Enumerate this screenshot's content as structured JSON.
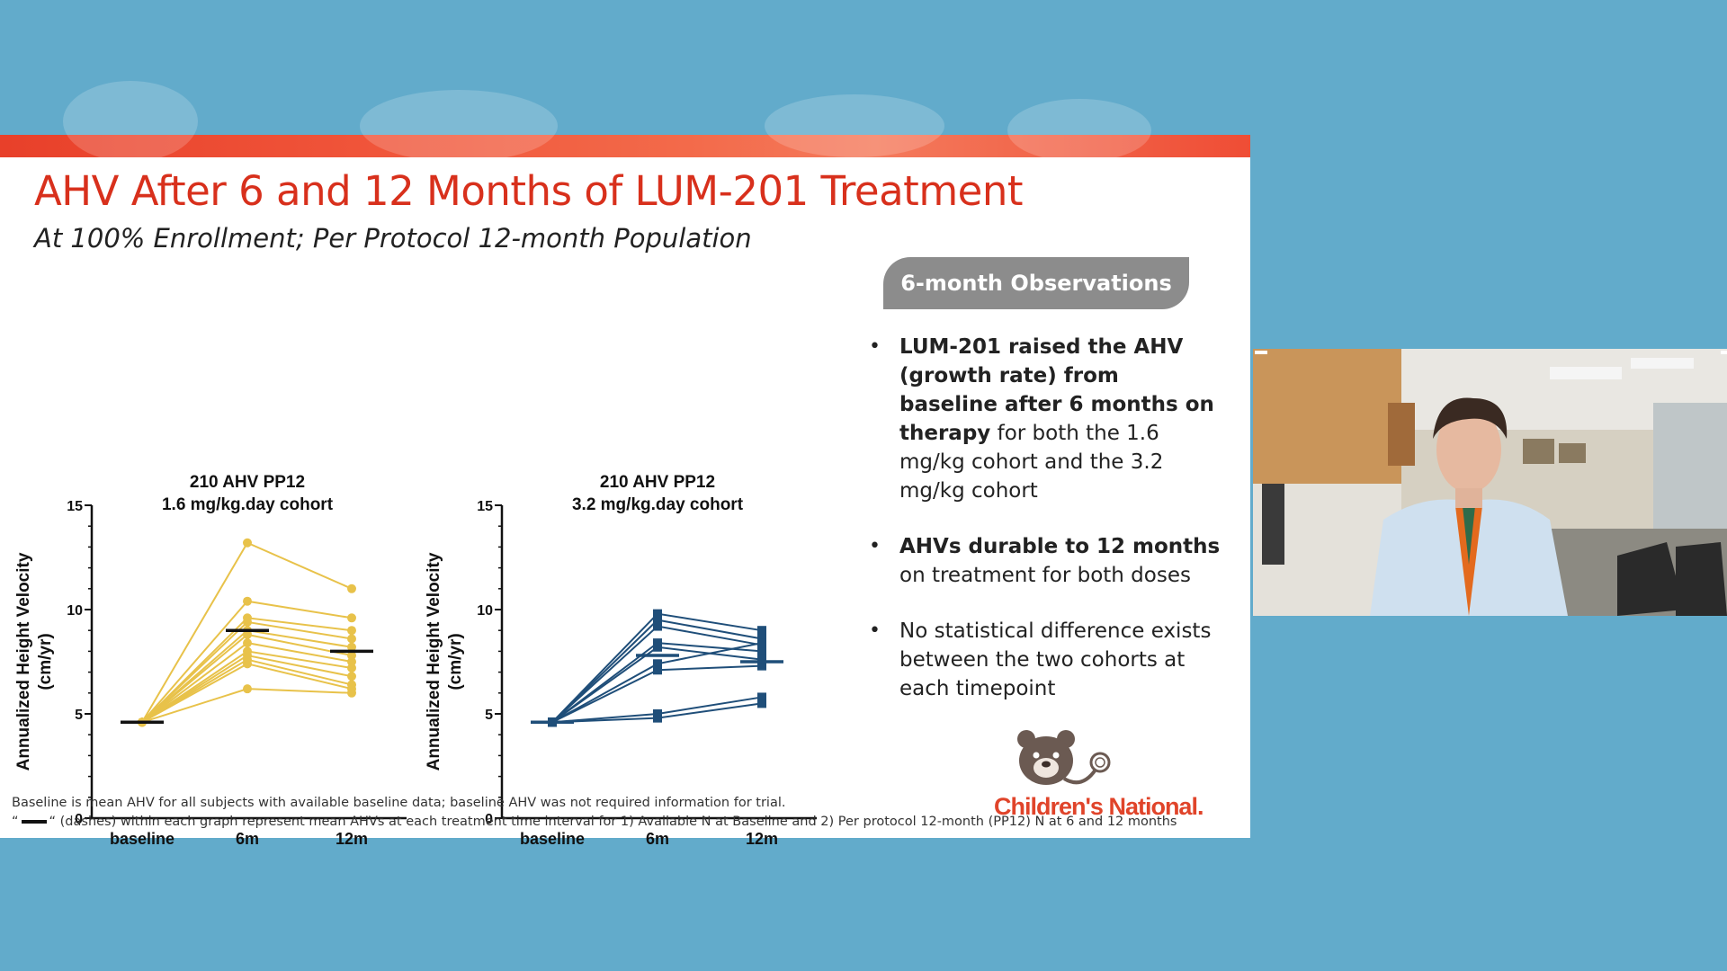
{
  "slide": {
    "title": "AHV After 6 and 12 Months of LUM-201 Treatment",
    "subtitle": "At 100% Enrollment; Per Protocol 12-month Population",
    "observations_label": "6-month Observations",
    "bullets": [
      {
        "bold": "LUM-201 raised the AHV (growth rate) from baseline after 6 months on therapy",
        "rest": " for both the 1.6 mg/kg cohort and the 3.2 mg/kg cohort"
      },
      {
        "bold": "AHVs durable to 12 months",
        "rest": " on treatment for both doses"
      },
      {
        "bold": "",
        "rest": "No statistical difference exists between the two cohorts at each timepoint"
      }
    ],
    "logo_text": "Children's National.",
    "footnote_1": "Baseline is mean AHV for all subjects with available baseline data; baseline AHV was not required information for trial.",
    "footnote_2_prefix": "“",
    "footnote_2": "“ (dashes) within each graph represent mean AHVs at each treatment time interval for 1) Available N at Baseline and 2) Per protocol 12-month (PP12) N at 6 and 12 months"
  },
  "colors": {
    "accent_red": "#d8301c",
    "left_series": "#e8c24a",
    "right_series": "#1f4e79"
  },
  "chart_data": [
    {
      "type": "line",
      "title": "210 AHV PP12",
      "subtitle": "1.6 mg/kg.day cohort",
      "ylabel_1": "Annualized Height Velocity",
      "ylabel_2": "(cm/yr)",
      "categories": [
        "baseline",
        "6m",
        "12m"
      ],
      "yticks": [
        "0",
        "5",
        "10",
        "15"
      ],
      "ylim": [
        0,
        15
      ],
      "marker": "circle",
      "series": [
        {
          "values": [
            4.6,
            13.2,
            11.0
          ]
        },
        {
          "values": [
            4.6,
            10.4,
            9.6
          ]
        },
        {
          "values": [
            4.6,
            9.6,
            9.0
          ]
        },
        {
          "values": [
            4.6,
            9.4,
            8.6
          ]
        },
        {
          "values": [
            4.6,
            9.0,
            8.2
          ]
        },
        {
          "values": [
            4.6,
            8.8,
            7.8
          ]
        },
        {
          "values": [
            4.6,
            8.4,
            7.5
          ]
        },
        {
          "values": [
            4.6,
            8.0,
            7.2
          ]
        },
        {
          "values": [
            4.6,
            7.8,
            6.8
          ]
        },
        {
          "values": [
            4.6,
            7.6,
            6.4
          ]
        },
        {
          "values": [
            4.6,
            7.4,
            6.2
          ]
        },
        {
          "values": [
            4.6,
            6.2,
            6.0
          ]
        }
      ],
      "means": [
        4.6,
        9.0,
        8.0
      ]
    },
    {
      "type": "line",
      "title": "210 AHV PP12",
      "subtitle": "3.2 mg/kg.day cohort",
      "ylabel_1": "Annualized Height Velocity",
      "ylabel_2": "(cm/yr)",
      "categories": [
        "baseline",
        "6m",
        "12m"
      ],
      "yticks": [
        "0",
        "5",
        "10",
        "15"
      ],
      "ylim": [
        0,
        15
      ],
      "marker": "square",
      "series": [
        {
          "values": [
            4.6,
            9.8,
            9.0
          ]
        },
        {
          "values": [
            4.6,
            9.5,
            8.6
          ]
        },
        {
          "values": [
            4.6,
            9.2,
            8.3
          ]
        },
        {
          "values": [
            4.6,
            8.4,
            8.0
          ]
        },
        {
          "values": [
            4.6,
            8.2,
            7.6
          ]
        },
        {
          "values": [
            4.6,
            7.4,
            8.4
          ]
        },
        {
          "values": [
            4.6,
            7.1,
            7.3
          ]
        },
        {
          "values": [
            4.6,
            5.0,
            5.8
          ]
        },
        {
          "values": [
            4.6,
            4.8,
            5.5
          ]
        }
      ],
      "means": [
        4.6,
        7.8,
        7.5
      ]
    }
  ]
}
